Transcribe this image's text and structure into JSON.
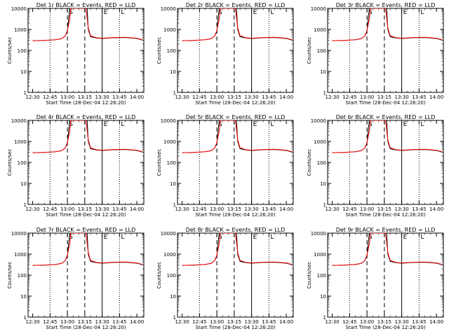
{
  "layout": {
    "rows": 3,
    "cols": 3
  },
  "colors": {
    "events": "#000000",
    "lld": "#ff0000",
    "background": "#ffffff",
    "axes": "#000000"
  },
  "shared": {
    "xlabel": "Start Time (28-Dec-04 12:26:20)",
    "ylabel": "Counts/sec",
    "x_ticks": [
      "12:30",
      "12:45",
      "13:00",
      "13:15",
      "13:30",
      "13:45",
      "14:00"
    ],
    "y_ticks": [
      "1",
      "10",
      "100",
      "1000",
      "10000"
    ],
    "markers": {
      "dotted": [
        "12:45",
        "13:45"
      ],
      "dashed": [
        "13:00",
        "13:15"
      ],
      "solid": [
        "13:30"
      ]
    },
    "annotations": [
      {
        "text": "S",
        "x": "13:00"
      },
      {
        "text": "E",
        "x": "13:30"
      },
      {
        "text": "L",
        "x": "13:45"
      }
    ]
  },
  "panels": [
    {
      "title": "Det 1r BLACK = Events, RED = LLD"
    },
    {
      "title": "Det 2r BLACK = Events, RED = LLD"
    },
    {
      "title": "Det 3r BLACK = Events, RED = LLD"
    },
    {
      "title": "Det 4r BLACK = Events, RED = LLD"
    },
    {
      "title": "Det 5r BLACK = Events, RED = LLD"
    },
    {
      "title": "Det 6r BLACK = Events, RED = LLD"
    },
    {
      "title": "Det 7r BLACK = Events, RED = LLD"
    },
    {
      "title": "Det 8r BLACK = Events, RED = LLD"
    },
    {
      "title": "Det 9r BLACK = Events, RED = LLD"
    }
  ],
  "chart_data": {
    "type": "line",
    "yscale": "log",
    "xlim": [
      "12:26",
      "14:06"
    ],
    "ylim": [
      1,
      10000
    ],
    "series": [
      {
        "name": "Events",
        "color": "#000000",
        "x": [
          "12:30",
          "12:40",
          "12:50",
          "12:55",
          "12:58",
          "13:00",
          "13:02",
          "13:17",
          "13:18",
          "13:20",
          "13:25",
          "13:30",
          "13:40",
          "13:50",
          "14:00",
          "14:05"
        ],
        "y": [
          290,
          300,
          320,
          360,
          480,
          800,
          10000,
          10000,
          1000,
          450,
          390,
          370,
          400,
          410,
          370,
          310
        ]
      },
      {
        "name": "LLD",
        "color": "#ff0000",
        "x": [
          "12:30",
          "12:40",
          "12:50",
          "12:55",
          "12:58",
          "13:00",
          "13:02",
          "13:03",
          "13:16",
          "13:18",
          "13:20",
          "13:25",
          "13:30",
          "13:40",
          "13:50",
          "14:00",
          "14:05"
        ],
        "y": [
          290,
          300,
          320,
          360,
          480,
          900,
          3000,
          10000,
          10000,
          1200,
          500,
          400,
          380,
          410,
          420,
          380,
          320
        ]
      }
    ]
  }
}
